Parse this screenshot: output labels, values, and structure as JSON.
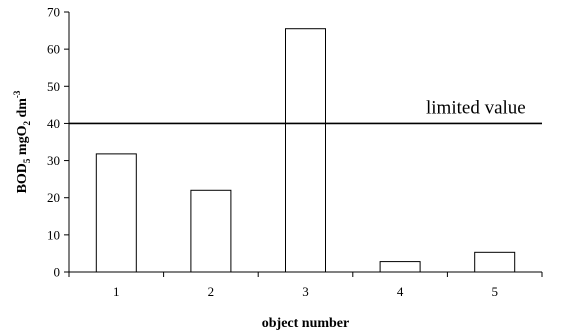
{
  "chart_data": {
    "type": "bar",
    "categories": [
      "1",
      "2",
      "3",
      "4",
      "5"
    ],
    "values": [
      31.8,
      22.0,
      65.5,
      2.8,
      5.3
    ],
    "xlabel": "object number",
    "ylabel_main": "BOD",
    "ylabel_sub5": "5",
    "ylabel_mid": " mgO",
    "ylabel_sub2": "2",
    "ylabel_end": " dm",
    "ylabel_sup": "-3",
    "ylim": [
      0,
      70
    ],
    "yticks": [
      0,
      10,
      20,
      30,
      40,
      50,
      60,
      70
    ],
    "reference_line": {
      "value": 40,
      "label": "limited value"
    },
    "bar_fill": "#ffffff",
    "bar_stroke": "#000000",
    "grid": false,
    "legend": "none"
  }
}
